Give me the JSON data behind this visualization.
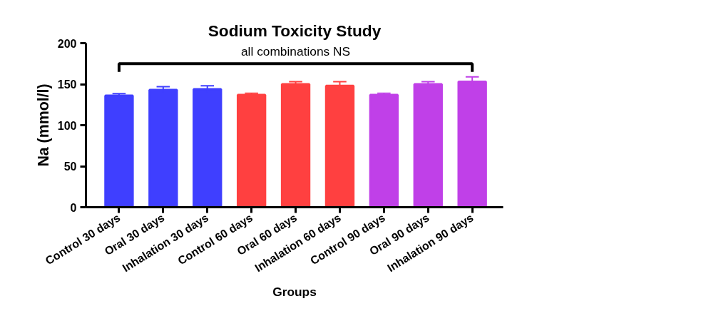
{
  "chart_data": {
    "type": "bar",
    "title": "Sodium Toxicity Study",
    "xlabel": "Groups",
    "ylabel": "Na (mmol/l)",
    "categories": [
      "Control 30 days",
      "Oral 30 days",
      "Inhalation 30 days",
      "Control 60 days",
      "Oral 60 days",
      "Inhalation 60 days",
      "Control 90 days",
      "Oral 90 days",
      "Inhalation 90 days"
    ],
    "values": [
      136,
      143,
      144,
      137,
      150,
      148,
      137,
      150,
      153
    ],
    "errors": [
      2.5,
      4,
      4,
      2,
      3,
      5,
      2,
      3,
      6
    ],
    "colors": [
      "#3f3fff",
      "#3f3fff",
      "#3f3fff",
      "#ff4040",
      "#ff4040",
      "#ff4040",
      "#c040e8",
      "#c040e8",
      "#c040e8"
    ],
    "ylim": [
      0,
      200
    ],
    "yticks": [
      0,
      50,
      100,
      150,
      200
    ],
    "grid": false,
    "annotations": [
      "all combinations NS"
    ]
  }
}
